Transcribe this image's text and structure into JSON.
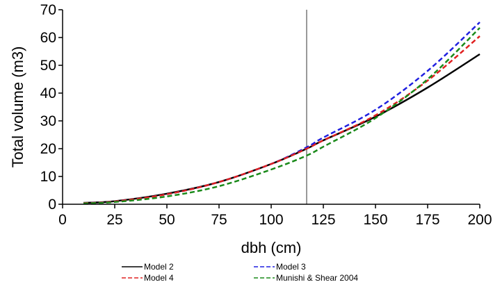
{
  "chart_data": {
    "type": "line",
    "xlabel": "dbh (cm)",
    "ylabel": "Total volume (m3)",
    "xlim": [
      0,
      200
    ],
    "ylim": [
      0,
      70
    ],
    "xticks": [
      0,
      25,
      50,
      75,
      100,
      125,
      150,
      175,
      200
    ],
    "yticks": [
      0,
      10,
      20,
      30,
      40,
      50,
      60,
      70
    ],
    "grid": false,
    "legend_position": "bottom",
    "reference_line_x": 117,
    "x": [
      10,
      25,
      50,
      75,
      100,
      117,
      125,
      150,
      175,
      200
    ],
    "series": [
      {
        "name": "Model 2",
        "color": "#000000",
        "dash": "solid",
        "values": [
          0.5,
          1.1,
          3.8,
          8.0,
          14.5,
          20.0,
          23.0,
          31.5,
          42.0,
          54.0
        ]
      },
      {
        "name": "Model 3",
        "color": "#1f1fe0",
        "dash": "dashed",
        "values": [
          0.4,
          1.0,
          3.6,
          8.0,
          14.5,
          20.5,
          24.0,
          34.0,
          48.0,
          65.5
        ]
      },
      {
        "name": "Model 4",
        "color": "#e02020",
        "dash": "dashed",
        "values": [
          0.4,
          1.0,
          3.6,
          8.0,
          14.5,
          20.0,
          23.0,
          32.0,
          44.5,
          60.5
        ]
      },
      {
        "name": "Munishi & Shear 2004",
        "color": "#1a8a1a",
        "dash": "dashed",
        "values": [
          0.3,
          0.8,
          2.8,
          6.5,
          12.5,
          17.5,
          20.7,
          31.0,
          45.0,
          63.5
        ]
      }
    ]
  }
}
